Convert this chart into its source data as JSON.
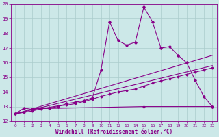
{
  "xlabel": "Windchill (Refroidissement éolien,°C)",
  "xlim": [
    -0.5,
    23.5
  ],
  "ylim": [
    12,
    20
  ],
  "yticks": [
    12,
    13,
    14,
    15,
    16,
    17,
    18,
    19,
    20
  ],
  "xticks": [
    0,
    1,
    2,
    3,
    4,
    5,
    6,
    7,
    8,
    9,
    10,
    11,
    12,
    13,
    14,
    15,
    16,
    17,
    18,
    19,
    20,
    21,
    22,
    23
  ],
  "bg_color": "#cce8e8",
  "line_color": "#880088",
  "grid_color": "#aacccc",
  "lines": [
    {
      "x": [
        0,
        1,
        2,
        3,
        4,
        5,
        6,
        7,
        8,
        9,
        10,
        11,
        12,
        13,
        14,
        15,
        16,
        17,
        18,
        19,
        20,
        21,
        22,
        23
      ],
      "y": [
        12.5,
        12.9,
        12.8,
        12.9,
        12.9,
        13.0,
        13.2,
        13.3,
        13.4,
        13.6,
        15.5,
        18.8,
        17.5,
        17.2,
        17.4,
        19.8,
        18.8,
        17.0,
        17.1,
        16.5,
        16.0,
        14.8,
        13.7,
        13.0
      ]
    },
    {
      "x": [
        0,
        23
      ],
      "y": [
        12.5,
        16.5
      ]
    },
    {
      "x": [
        0,
        23
      ],
      "y": [
        12.5,
        15.8
      ]
    },
    {
      "x": [
        0,
        1,
        2,
        3,
        4,
        5,
        6,
        7,
        8,
        9,
        10,
        11,
        12,
        13,
        14,
        15,
        16,
        17,
        18,
        19,
        20,
        21,
        22,
        23
      ],
      "y": [
        12.5,
        12.6,
        12.7,
        12.85,
        12.95,
        13.05,
        13.1,
        13.2,
        13.35,
        13.5,
        13.7,
        13.85,
        14.0,
        14.1,
        14.2,
        14.4,
        14.6,
        14.75,
        14.9,
        15.05,
        15.2,
        15.35,
        15.5,
        15.65
      ]
    },
    {
      "x": [
        2,
        15,
        23
      ],
      "y": [
        12.85,
        13.0,
        13.0
      ]
    }
  ]
}
